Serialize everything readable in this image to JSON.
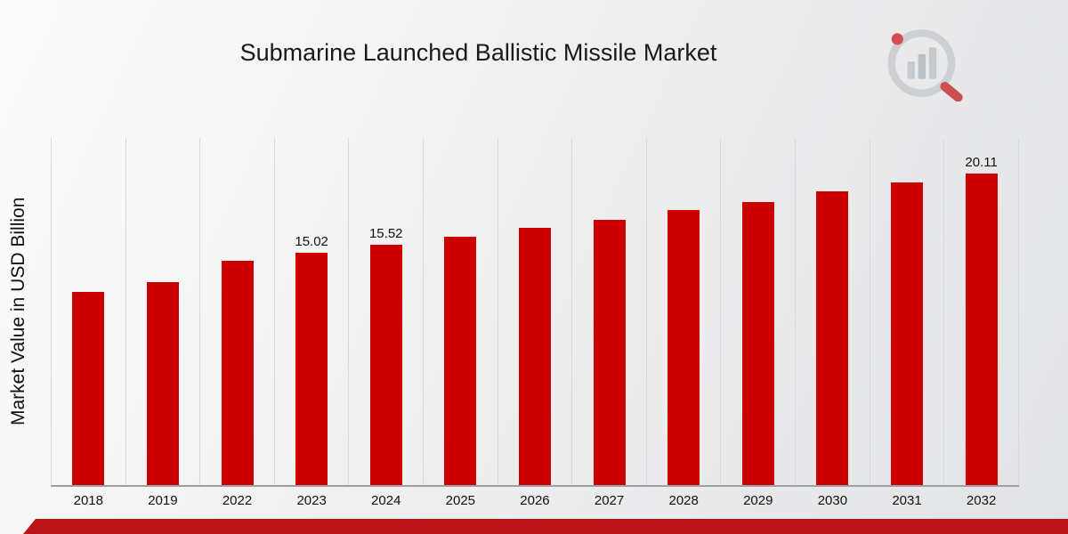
{
  "page": {
    "title": "Submarine Launched Ballistic Missile Market",
    "ylabel": "Market Value in USD Billion"
  },
  "logo": {
    "icon": "bar-chart-magnifier-logo"
  },
  "colors": {
    "bar": "#cc0001",
    "accent_strip": "#bb1118",
    "gridline": "#d7d9db",
    "axis": "#9aa0a6"
  },
  "chart_data": {
    "type": "bar",
    "title": "Submarine Launched Ballistic Missile Market",
    "xlabel": "",
    "ylabel": "Market Value in USD Billion",
    "categories": [
      "2018",
      "2019",
      "2022",
      "2023",
      "2024",
      "2025",
      "2026",
      "2027",
      "2028",
      "2029",
      "2030",
      "2031",
      "2032"
    ],
    "values": [
      12.5,
      13.1,
      14.5,
      15.02,
      15.52,
      16.05,
      16.6,
      17.1,
      17.75,
      18.3,
      18.95,
      19.55,
      20.11
    ],
    "labeled_indices": [
      3,
      4,
      12
    ],
    "data_labels": [
      "15.02",
      "15.52",
      "20.11"
    ],
    "ylim": [
      0,
      22
    ],
    "grid": "vertical",
    "legend": "none",
    "bar_color": "#cc0001"
  }
}
